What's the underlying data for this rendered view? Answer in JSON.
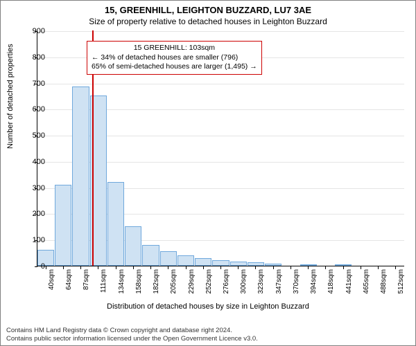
{
  "title_main": "15, GREENHILL, LEIGHTON BUZZARD, LU7 3AE",
  "title_sub": "Size of property relative to detached houses in Leighton Buzzard",
  "y_label": "Number of detached properties",
  "x_label": "Distribution of detached houses by size in Leighton Buzzard",
  "chart": {
    "type": "histogram",
    "y_max": 900,
    "y_ticks": [
      0,
      100,
      200,
      300,
      400,
      500,
      600,
      700,
      800,
      900
    ],
    "x_categories": [
      "40sqm",
      "64sqm",
      "87sqm",
      "111sqm",
      "134sqm",
      "158sqm",
      "182sqm",
      "205sqm",
      "229sqm",
      "252sqm",
      "276sqm",
      "300sqm",
      "323sqm",
      "347sqm",
      "370sqm",
      "394sqm",
      "418sqm",
      "441sqm",
      "465sqm",
      "488sqm",
      "512sqm"
    ],
    "bars": [
      60,
      310,
      685,
      650,
      320,
      150,
      80,
      55,
      40,
      30,
      20,
      15,
      12,
      8,
      0,
      3,
      0,
      2,
      0,
      0,
      0
    ],
    "bar_fill": "#cfe2f3",
    "bar_stroke": "#6fa8dc",
    "grid_color": "#e5e5e5",
    "marker_color": "#cc0000",
    "marker_position_sqm": 103,
    "background_color": "#ffffff"
  },
  "annotation": {
    "line1": "15 GREENHILL: 103sqm",
    "line2": "← 34% of detached houses are smaller (796)",
    "line3": "65% of semi-detached houses are larger (1,495) →",
    "border_color": "#cc0000"
  },
  "footer_line1": "Contains HM Land Registry data © Crown copyright and database right 2024.",
  "footer_line2": "Contains public sector information licensed under the Open Government Licence v3.0."
}
